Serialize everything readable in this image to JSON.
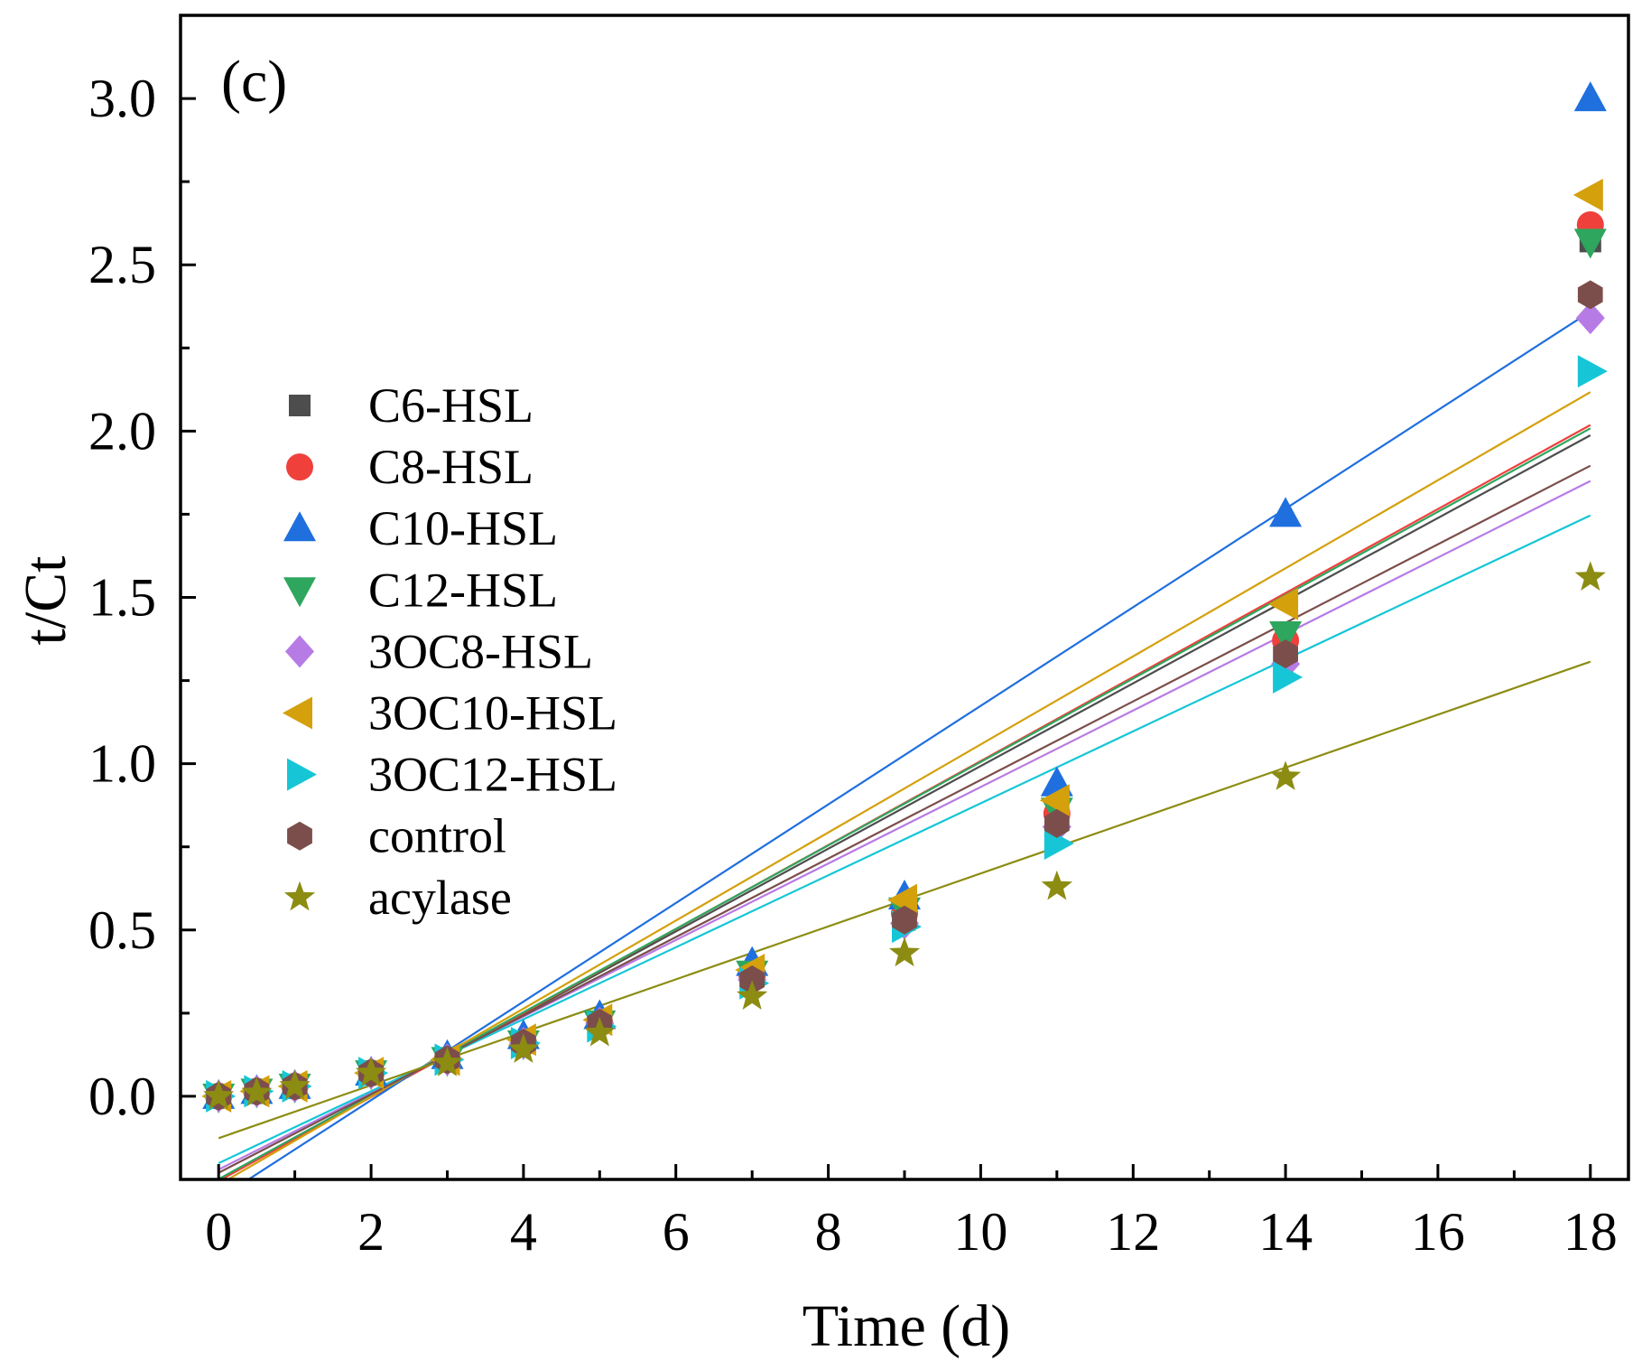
{
  "chart_data": {
    "type": "scatter",
    "title": "",
    "panel_label": "(c)",
    "xlabel": "Time (d)",
    "ylabel": "t/Ct",
    "xlim": [
      -0.5,
      18.5
    ],
    "ylim": [
      -0.25,
      3.25
    ],
    "xticks": [
      0,
      2,
      4,
      6,
      8,
      10,
      12,
      14,
      16,
      18
    ],
    "xtick_labels": [
      "0",
      "2",
      "4",
      "6",
      "8",
      "10",
      "12",
      "14",
      "16",
      "18"
    ],
    "xminor": [
      1,
      3,
      5,
      7,
      9,
      11,
      13,
      15,
      17
    ],
    "yticks": [
      0,
      0.5,
      1.0,
      1.5,
      2.0,
      2.5,
      3.0
    ],
    "ytick_labels": [
      "0.0",
      "0.5",
      "1.0",
      "1.5",
      "2.0",
      "2.5",
      "3.0"
    ],
    "yminor": [
      0.25,
      0.75,
      1.25,
      1.75,
      2.25,
      2.75
    ],
    "grid": false,
    "legend_position": "left",
    "fit_range": [
      0,
      18
    ],
    "x": [
      0,
      0.5,
      1,
      2,
      3,
      4,
      5,
      7,
      9,
      11,
      14,
      18
    ],
    "series": [
      {
        "name": "C6-HSL",
        "marker": "square",
        "color": "#4d4d4d",
        "values": [
          0,
          0.01,
          0.03,
          0.07,
          0.11,
          0.16,
          0.22,
          0.36,
          0.53,
          0.84,
          1.36,
          2.57
        ],
        "fit": {
          "slope": 0.1243,
          "intercept": -0.25
        }
      },
      {
        "name": "C8-HSL",
        "marker": "circle",
        "color": "#f0403c",
        "values": [
          0,
          0.015,
          0.03,
          0.07,
          0.11,
          0.16,
          0.22,
          0.36,
          0.55,
          0.85,
          1.37,
          2.62
        ],
        "fit": {
          "slope": 0.1263,
          "intercept": -0.255
        }
      },
      {
        "name": "C10-HSL",
        "marker": "triangle-up",
        "color": "#1f6fde",
        "values": [
          0,
          0.015,
          0.03,
          0.07,
          0.12,
          0.18,
          0.24,
          0.4,
          0.6,
          0.94,
          1.75,
          3.0
        ],
        "fit": {
          "slope": 0.1482,
          "intercept": -0.308
        }
      },
      {
        "name": "C12-HSL",
        "marker": "triangle-down",
        "color": "#2ea65e",
        "values": [
          0,
          0.015,
          0.03,
          0.07,
          0.11,
          0.16,
          0.22,
          0.37,
          0.56,
          0.86,
          1.39,
          2.57
        ],
        "fit": {
          "slope": 0.1254,
          "intercept": -0.249
        }
      },
      {
        "name": "3OC8-HSL",
        "marker": "diamond",
        "color": "#b77be6",
        "values": [
          0,
          0.015,
          0.03,
          0.07,
          0.11,
          0.16,
          0.22,
          0.35,
          0.52,
          0.81,
          1.3,
          2.34
        ],
        "fit": {
          "slope": 0.115,
          "intercept": -0.22
        }
      },
      {
        "name": "3OC10-HSL",
        "marker": "triangle-left",
        "color": "#d4a00c",
        "values": [
          0,
          0.015,
          0.03,
          0.07,
          0.11,
          0.17,
          0.23,
          0.38,
          0.59,
          0.89,
          1.48,
          2.71
        ],
        "fit": {
          "slope": 0.1324,
          "intercept": -0.266
        }
      },
      {
        "name": "3OC12-HSL",
        "marker": "triangle-right",
        "color": "#16c6d6",
        "values": [
          0,
          0.015,
          0.03,
          0.07,
          0.11,
          0.16,
          0.21,
          0.34,
          0.51,
          0.76,
          1.26,
          2.18
        ],
        "fit": {
          "slope": 0.1082,
          "intercept": -0.201
        }
      },
      {
        "name": "control",
        "marker": "hexagon",
        "color": "#7b4e4b",
        "values": [
          0,
          0.015,
          0.03,
          0.07,
          0.11,
          0.16,
          0.22,
          0.35,
          0.53,
          0.82,
          1.33,
          2.41
        ],
        "fit": {
          "slope": 0.1181,
          "intercept": -0.23
        }
      },
      {
        "name": "acylase",
        "marker": "star",
        "color": "#8c8c12",
        "values": [
          0,
          0.01,
          0.03,
          0.07,
          0.1,
          0.14,
          0.19,
          0.3,
          0.43,
          0.63,
          0.96,
          1.56
        ],
        "fit": {
          "slope": 0.0796,
          "intercept": -0.126
        }
      }
    ]
  }
}
